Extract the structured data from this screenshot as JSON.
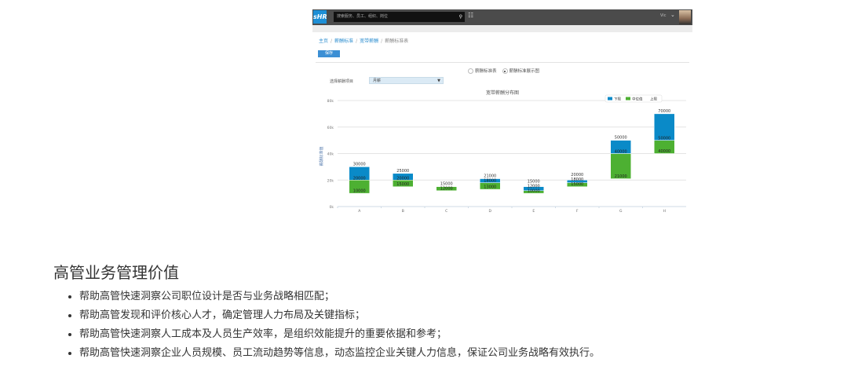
{
  "app": {
    "logo": "sHR",
    "search_placeholder": "搜索服务、员工、组织、岗位",
    "user_name": "Vic",
    "breadcrumb": [
      "主页",
      "薪酬标准",
      "宽带薪酬",
      "薪酬标准表"
    ],
    "save_label": "保存",
    "view_options": [
      {
        "label": "薪酬标准表",
        "selected": false
      },
      {
        "label": "薪酬标准展示图",
        "selected": true
      }
    ],
    "select_label": "选择薪酬项目",
    "select_value": "月薪"
  },
  "chart_data": {
    "type": "bar",
    "title": "宽带薪酬分布图",
    "ylabel": "薪酬标准值",
    "ylim": [
      0,
      80000
    ],
    "yticks": [
      "0k",
      "20k",
      "40k",
      "60k",
      "80k"
    ],
    "grid": true,
    "legend": {
      "placement": "top-right",
      "entries": [
        {
          "label": "下限",
          "color": "#0a8ac8"
        },
        {
          "label": "中位值",
          "color": "#4db032"
        },
        {
          "label": "上限",
          "color": ""
        }
      ]
    },
    "categories": [
      "A",
      "B",
      "C",
      "D",
      "E",
      "F",
      "G",
      "H"
    ],
    "lower": [
      10000,
      15000,
      12000,
      13000,
      10000,
      15000,
      21000,
      40000
    ],
    "median": [
      20000,
      20000,
      15000,
      18000,
      12000,
      18000,
      40000,
      50000
    ],
    "upper": [
      30000,
      25000,
      15000,
      21000,
      15000,
      20000,
      50000,
      70000
    ],
    "colors": {
      "lower_to_median": "#4db032",
      "median_to_upper": "#0a8ac8"
    }
  },
  "article": {
    "heading": "高管业务管理价值",
    "bullets": [
      "帮助高管快速洞察公司职位设计是否与业务战略相匹配；",
      "帮助高管发现和评价核心人才，确定管理人力布局及关键指标；",
      "帮助高管快速洞察人工成本及人员生产效率，是组织效能提升的重要依据和参考；",
      "帮助高管快速洞察企业人员规模、员工流动趋势等信息，动态监控企业关键人力信息，保证公司业务战略有效执行。"
    ]
  }
}
